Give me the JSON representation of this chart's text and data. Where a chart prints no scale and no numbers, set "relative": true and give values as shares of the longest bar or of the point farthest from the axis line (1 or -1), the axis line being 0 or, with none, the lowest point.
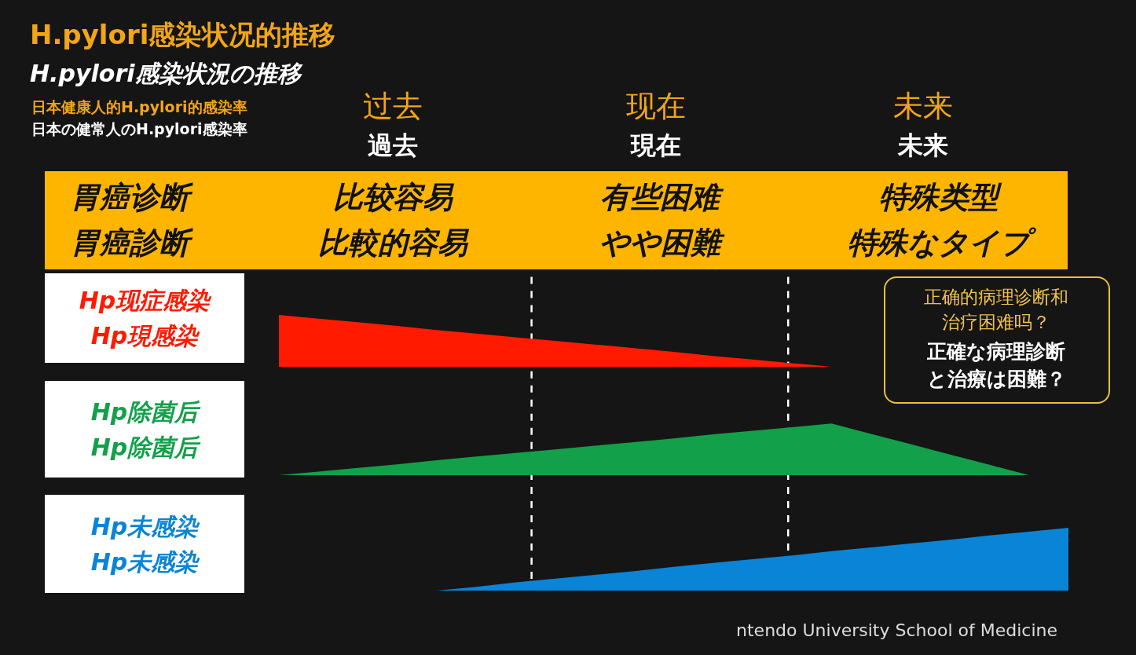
{
  "chart_data": [
    {
      "type": "area",
      "title": "H.pylori感染状况的推移",
      "subtitle": "H.pylori感染状況の推移",
      "annotations": [
        "日本健康人的H.pylori的感染率",
        "日本の健常人のH.pylori感染率",
        "过去",
        "過去",
        "现在",
        "現在",
        "未来",
        "未来",
        "胃癌诊断",
        "胃癌診断",
        "比较容易",
        "比較的容易",
        "有些困难",
        "やや困難",
        "特殊类型",
        "特殊なタイプ",
        "正确的病理诊断和治疗困难吗？",
        "正確な病理診断と治療は困難？",
        "ntendo University School of Medicine"
      ],
      "categories": [
        null,
        null,
        null,
        null,
        null,
        null,
        null,
        null,
        null,
        null,
        null,
        null,
        null,
        null,
        null,
        null,
        null,
        null,
        null,
        null,
        null
      ],
      "relative": true,
      "series": [
        {
          "name": "Hp现症感染 Hp現感染",
          "color": "#ff1a00",
          "values": [
            1,
            0.93,
            0.86,
            0.79,
            0.71,
            0.64,
            0.57,
            0.5,
            0.43,
            0.36,
            0.29,
            0.21,
            0.14,
            0.07,
            0,
            null,
            null,
            null,
            null,
            null,
            null
          ]
        }
      ]
    },
    {
      "type": "area",
      "categories": [
        null,
        null,
        null,
        null,
        null,
        null,
        null,
        null,
        null,
        null,
        null,
        null,
        null,
        null,
        null,
        null,
        null,
        null,
        null,
        null,
        null
      ],
      "relative": true,
      "series": [
        {
          "name": "Hp除菌后 Hp除菌后",
          "color": "#12a04a",
          "values": [
            0,
            0.07,
            0.14,
            0.21,
            0.29,
            0.36,
            0.43,
            0.5,
            0.57,
            0.64,
            0.71,
            0.79,
            0.86,
            0.93,
            1,
            0.8,
            0.6,
            0.4,
            0.2,
            0,
            null
          ]
        }
      ]
    },
    {
      "type": "area",
      "categories": [
        null,
        null,
        null,
        null,
        null,
        null,
        null,
        null,
        null,
        null,
        null,
        null,
        null,
        null,
        null,
        null,
        null,
        null,
        null,
        null,
        null
      ],
      "relative": true,
      "series": [
        {
          "name": "Hp未感染 Hp未感染",
          "color": "#0a84d6",
          "values": [
            null,
            null,
            null,
            null,
            0,
            0.06,
            0.13,
            0.19,
            0.25,
            0.31,
            0.38,
            0.44,
            0.5,
            0.56,
            0.63,
            0.69,
            0.75,
            0.81,
            0.88,
            0.94,
            1
          ]
        }
      ]
    }
  ]
}
